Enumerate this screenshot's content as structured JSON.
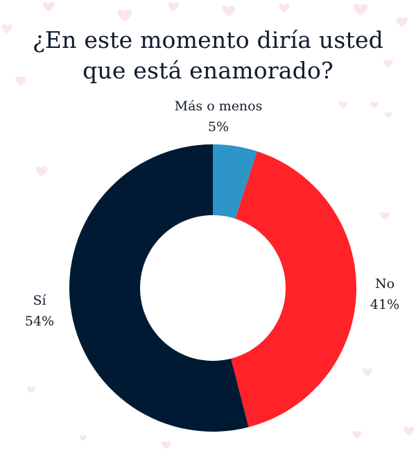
{
  "title": {
    "line1": "¿En este momento diría usted",
    "line2": "que está enamorado?"
  },
  "colors": {
    "si": "#001a33",
    "no": "#ff2228",
    "mas_o_menos": "#2e95c8",
    "background": "#ffffff",
    "hearts": "#fadbe6"
  },
  "labels": {
    "mas_o_menos": {
      "name": "Más o menos",
      "value": "5%"
    },
    "no": {
      "name": "No",
      "value": "41%"
    },
    "si": {
      "name": "Sí",
      "value": "54%"
    }
  },
  "chart_data": {
    "type": "pie",
    "subtype": "donut",
    "title": "¿En este momento diría usted que está enamorado?",
    "categories": [
      "Más o menos",
      "No",
      "Sí"
    ],
    "values": [
      5,
      41,
      54
    ],
    "unit": "%",
    "colors": [
      "#2e95c8",
      "#ff2228",
      "#001a33"
    ],
    "start_angle_deg": 0,
    "direction": "clockwise",
    "labels_position": "outside",
    "legend": "none"
  }
}
